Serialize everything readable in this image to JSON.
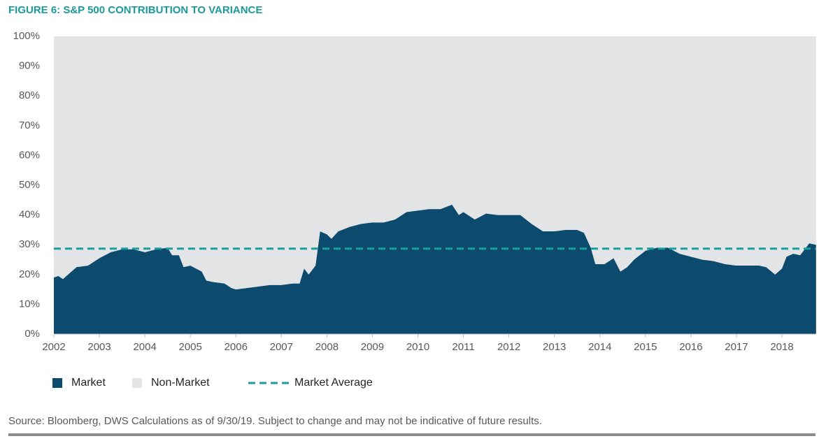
{
  "chart_data": {
    "type": "stacked_area",
    "title": "FIGURE 6: S&P 500 CONTRIBUTION TO VARIANCE",
    "x": [
      2002,
      2002.1,
      2002.2,
      2002.35,
      2002.5,
      2002.75,
      2003,
      2003.25,
      2003.5,
      2003.75,
      2004,
      2004.25,
      2004.5,
      2004.6,
      2004.75,
      2004.85,
      2005,
      2005.25,
      2005.35,
      2005.5,
      2005.75,
      2005.9,
      2006,
      2006.25,
      2006.5,
      2006.75,
      2007,
      2007.25,
      2007.4,
      2007.5,
      2007.6,
      2007.75,
      2007.85,
      2008,
      2008.1,
      2008.25,
      2008.5,
      2008.75,
      2009,
      2009.25,
      2009.5,
      2009.75,
      2010,
      2010.25,
      2010.5,
      2010.75,
      2010.9,
      2011,
      2011.25,
      2011.5,
      2011.75,
      2012,
      2012.25,
      2012.5,
      2012.75,
      2013,
      2013.25,
      2013.5,
      2013.65,
      2013.8,
      2013.9,
      2014.1,
      2014.3,
      2014.45,
      2014.6,
      2014.75,
      2015,
      2015.25,
      2015.5,
      2015.75,
      2016,
      2016.25,
      2016.5,
      2016.75,
      2017,
      2017.25,
      2017.5,
      2017.65,
      2017.85,
      2018,
      2018.1,
      2018.25,
      2018.4,
      2018.6,
      2018.75
    ],
    "series": [
      {
        "name": "Market",
        "color": "#0c4a6e",
        "values": [
          19,
          19.5,
          18.5,
          20.5,
          22.5,
          23,
          25.5,
          27.5,
          28.5,
          28.5,
          27.5,
          28.5,
          29,
          26.5,
          26.5,
          22.5,
          23,
          21,
          18,
          17.5,
          17,
          15.5,
          15,
          15.5,
          16,
          16.5,
          16.5,
          17,
          17,
          22,
          20,
          23,
          34.5,
          33.5,
          32,
          34.5,
          36,
          37,
          37.5,
          37.5,
          38.5,
          41,
          41.5,
          42,
          42,
          43.5,
          40,
          41,
          38.5,
          40.5,
          40,
          40,
          40,
          37,
          34.5,
          34.5,
          35,
          35,
          34,
          29,
          23.5,
          23.5,
          25.5,
          21,
          22.5,
          25,
          28,
          29,
          29,
          27,
          26,
          25,
          24.5,
          23.5,
          23,
          23,
          23,
          22.5,
          20,
          22,
          26,
          27,
          26.5,
          30.5,
          30
        ]
      },
      {
        "name": "Non-Market",
        "color": "#e3e4e6",
        "values": [
          81,
          80.5,
          81.5,
          79.5,
          77.5,
          77,
          74.5,
          72.5,
          71.5,
          71.5,
          72.5,
          71.5,
          71,
          73.5,
          73.5,
          77.5,
          77,
          79,
          82,
          82.5,
          83,
          84.5,
          85,
          84.5,
          84,
          83.5,
          83.5,
          83,
          83,
          78,
          80,
          77,
          65.5,
          66.5,
          68,
          65.5,
          64,
          63,
          62.5,
          62.5,
          61.5,
          59,
          58.5,
          58,
          58,
          56.5,
          60,
          59,
          61.5,
          59.5,
          60,
          60,
          60,
          63,
          65.5,
          65.5,
          65,
          65,
          66,
          71,
          76.5,
          76.5,
          74.5,
          79,
          77.5,
          75,
          72,
          71,
          71,
          73,
          74,
          75,
          75.5,
          76.5,
          77,
          77,
          77,
          77.5,
          80,
          78,
          74,
          73,
          73.5,
          69.5,
          70
        ]
      }
    ],
    "market_average": {
      "name": "Market Average",
      "value": 28.7,
      "color": "#1a9e9e"
    },
    "xlim": [
      2002,
      2018.75
    ],
    "xticks": [
      2002,
      2003,
      2004,
      2005,
      2006,
      2007,
      2008,
      2009,
      2010,
      2011,
      2012,
      2013,
      2014,
      2015,
      2016,
      2017,
      2018
    ],
    "ylim": [
      0,
      100
    ],
    "yticks": [
      {
        "value": 0,
        "label": "0%"
      },
      {
        "value": 10,
        "label": "10%"
      },
      {
        "value": 20,
        "label": "20%"
      },
      {
        "value": 30,
        "label": "30%"
      },
      {
        "value": 40,
        "label": "40%"
      },
      {
        "value": 50,
        "label": "50%"
      },
      {
        "value": 60,
        "label": "60%"
      },
      {
        "value": 70,
        "label": "70%"
      },
      {
        "value": 80,
        "label": "80%"
      },
      {
        "value": 90,
        "label": "90%"
      },
      {
        "value": 100,
        "label": "100%"
      }
    ],
    "source": "Source: Bloomberg, DWS Calculations as of 9/30/19. Subject to change and may not be indicative of future results."
  }
}
